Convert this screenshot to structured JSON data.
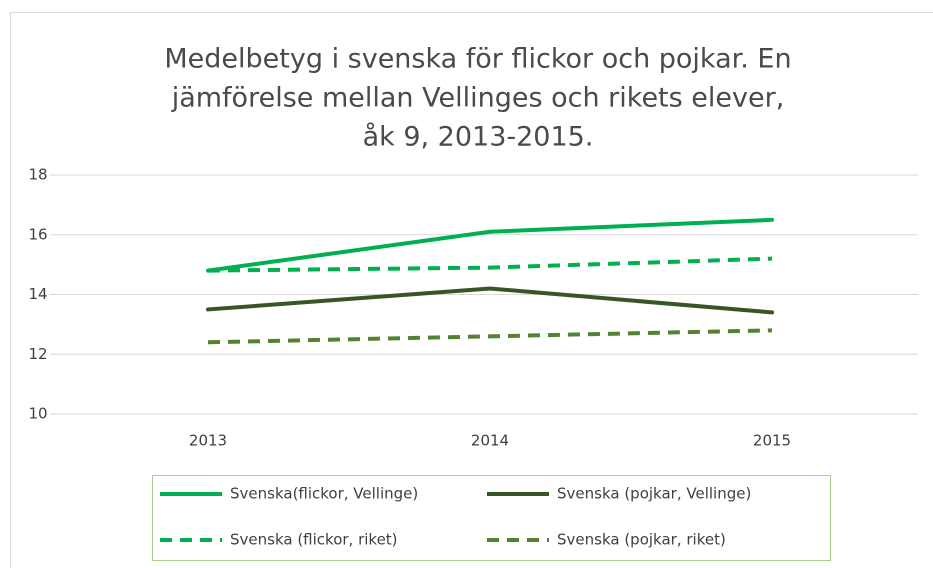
{
  "chart_data": {
    "type": "line",
    "title": [
      "Medelbetyg i svenska för flickor och pojkar. En",
      "jämförelse mellan Vellinges och rikets elever,",
      "åk 9,  2013-2015."
    ],
    "categories": [
      "2013",
      "2014",
      "2015"
    ],
    "series": [
      {
        "name": "Svenska(flickor, Vellinge)",
        "color": "#00b050",
        "dashed": false,
        "values": [
          14.8,
          16.1,
          16.5
        ]
      },
      {
        "name": "Svenska (pojkar, Vellinge)",
        "color": "#375623",
        "dashed": false,
        "values": [
          13.5,
          14.2,
          13.4
        ]
      },
      {
        "name": "Svenska (flickor, riket)",
        "color": "#00b050",
        "dashed": true,
        "values": [
          14.8,
          14.9,
          15.2
        ]
      },
      {
        "name": "Svenska (pojkar, riket)",
        "color": "#548235",
        "dashed": true,
        "values": [
          12.4,
          12.6,
          12.8
        ]
      }
    ],
    "ylim": [
      10,
      18
    ],
    "yticks": [
      10,
      12,
      14,
      16,
      18
    ],
    "grid": true
  }
}
